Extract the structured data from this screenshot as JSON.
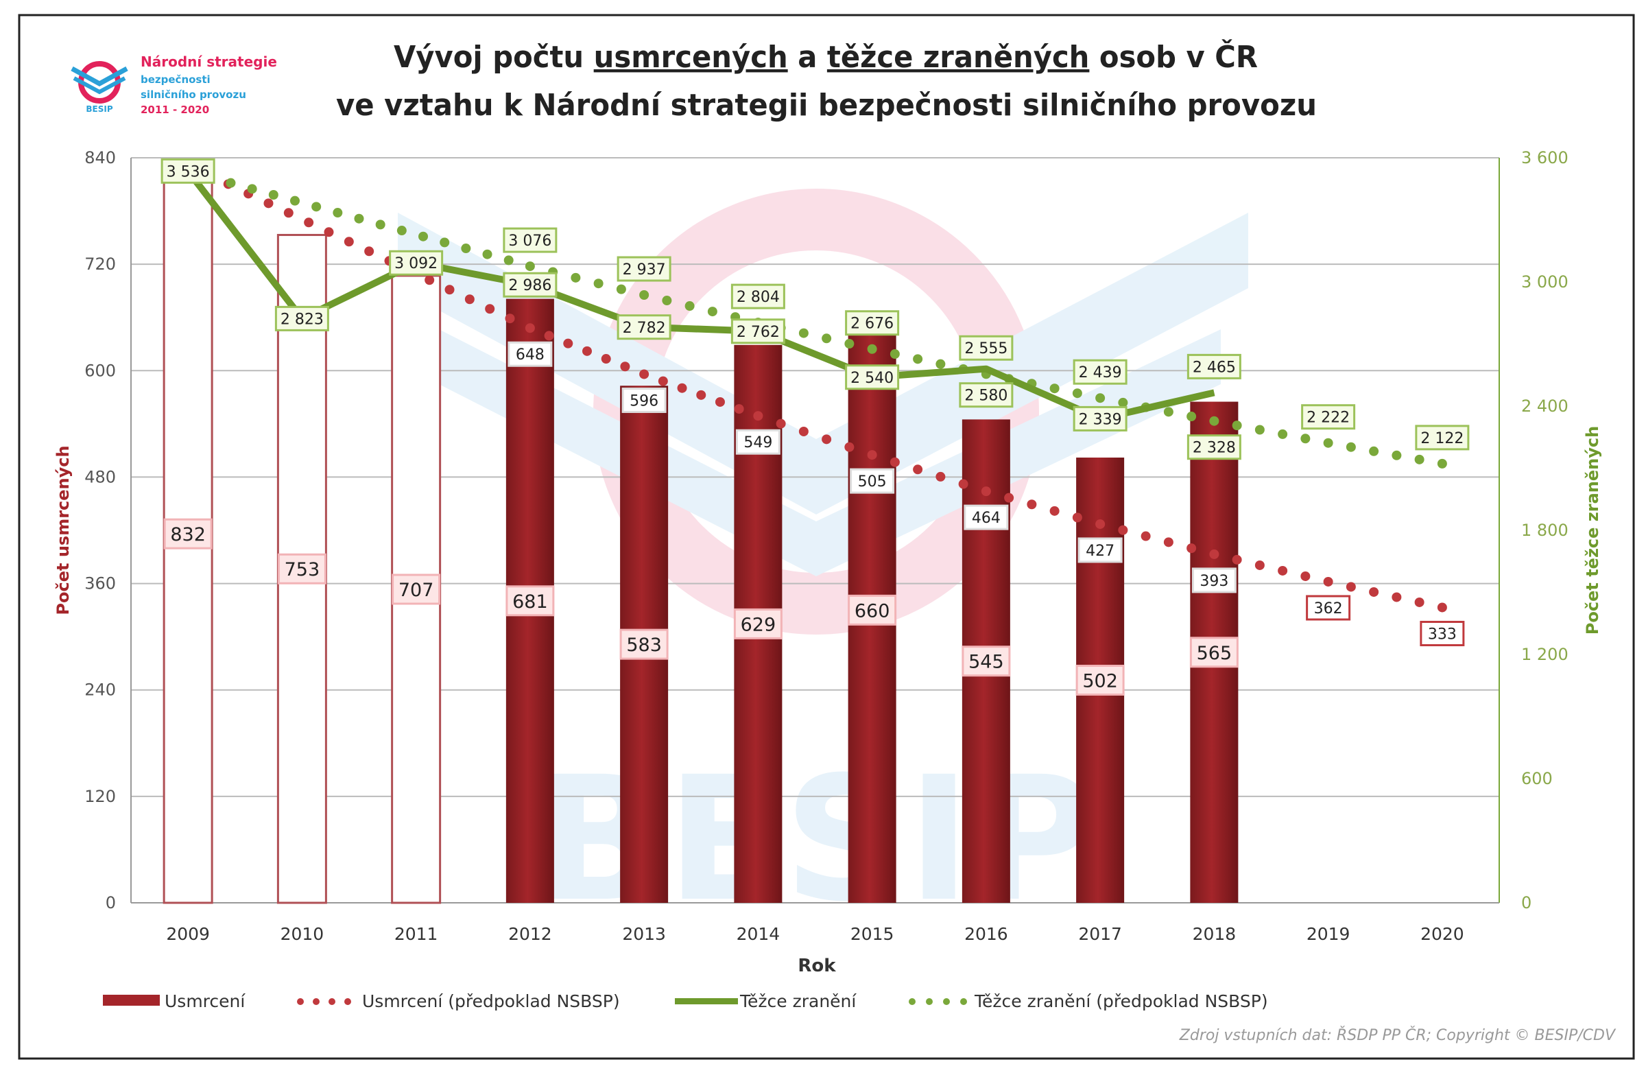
{
  "logo": {
    "line1": "Národní strategie",
    "line2": "bezpečnosti",
    "line3": "silničního provozu",
    "line4": "2011 - 2020",
    "mark_text": "BESIP"
  },
  "watermark_text": "BESIP",
  "chart_data": {
    "type": "bar",
    "title": {
      "line1_a": "Vývoj počtu ",
      "line1_u1": "usmrcených",
      "line1_b": " a ",
      "line1_u2": "těžce zraněných",
      "line1_c": " osob v ČR",
      "line2": "ve vztahu k Národní strategii bezpečnosti silničního provozu"
    },
    "xlabel": "Rok",
    "ylabel": "Počet usmrcených",
    "y2label": "Počet těžce zraněných",
    "categories": [
      "2009",
      "2010",
      "2011",
      "2012",
      "2013",
      "2014",
      "2015",
      "2016",
      "2017",
      "2018",
      "2019",
      "2020"
    ],
    "ylim": [
      0,
      840
    ],
    "yticks": [
      "0",
      "120",
      "240",
      "360",
      "480",
      "600",
      "720",
      "840"
    ],
    "y2lim": [
      0,
      3600
    ],
    "y2ticks": [
      "0",
      "600",
      "1 200",
      "1 800",
      "2 400",
      "3 000",
      "3 600"
    ],
    "grid": true,
    "legend_position": "bottom",
    "series": [
      {
        "name": "Usmrcení",
        "kind": "bar",
        "axis": "left",
        "color": "#a4252a",
        "values": [
          832,
          753,
          707,
          681,
          583,
          629,
          660,
          545,
          502,
          565,
          null,
          null
        ],
        "outlined_years": [
          "2009",
          "2010",
          "2011"
        ]
      },
      {
        "name": "Usmrcení (předpoklad NSBSP)",
        "kind": "dotted",
        "axis": "left",
        "color": "#c0393d",
        "values": [
          832,
          null,
          null,
          648,
          596,
          549,
          505,
          464,
          427,
          393,
          362,
          333
        ],
        "labels": [
          "",
          "",
          "",
          "648",
          "596",
          "549",
          "505",
          "464",
          "427",
          "393",
          "362",
          "333"
        ]
      },
      {
        "name": "Těžce zranění",
        "kind": "line",
        "axis": "right",
        "color": "#6e9a2c",
        "values": [
          3536,
          2823,
          3092,
          2986,
          2782,
          2762,
          2540,
          2580,
          2339,
          2465,
          null,
          null
        ],
        "labels": [
          "3 536",
          "2 823",
          "3 092",
          "2 986",
          "2 782",
          "2 762",
          "2 540",
          "2 580",
          "2 339",
          "2 465",
          "",
          ""
        ]
      },
      {
        "name": "Těžce zranění (předpoklad NSBSP)",
        "kind": "dotted",
        "axis": "right",
        "color": "#7aa83a",
        "values": [
          3536,
          null,
          null,
          3076,
          2937,
          2804,
          2676,
          2555,
          2439,
          2328,
          2222,
          2122
        ],
        "labels": [
          "",
          "",
          "",
          "3 076",
          "2 937",
          "2 804",
          "2 676",
          "2 555",
          "2 439",
          "2 328",
          "2 222",
          "2 122"
        ]
      }
    ],
    "source": "Zdroj vstupních dat: ŘSDP PP ČR; Copyright © BESIP/CDV"
  }
}
